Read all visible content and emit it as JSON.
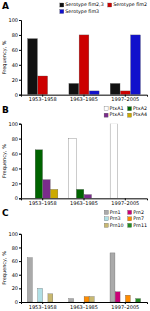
{
  "chart_data": [
    {
      "type": "bar",
      "title": "A",
      "categories": [
        "1953–1958",
        "1963–1985",
        "1997–2005"
      ],
      "series": [
        {
          "name": "Serotype fim2,3",
          "color": "#111111",
          "values": [
            75,
            15,
            15
          ]
        },
        {
          "name": "Serotype fim2",
          "color": "#cc0000",
          "values": [
            25,
            80,
            5
          ]
        },
        {
          "name": "Serotype fim3",
          "color": "#1111cc",
          "values": [
            0,
            5,
            80
          ]
        }
      ],
      "ylabel": "Frequency, %",
      "ylim": [
        0,
        100
      ],
      "yticks": [
        0,
        20,
        40,
        60,
        80,
        100
      ],
      "legend": "upper right"
    },
    {
      "type": "bar",
      "title": "B",
      "categories": [
        "1953–1958",
        "1963–1985",
        "1997–2005"
      ],
      "series": [
        {
          "name": "PtxA1",
          "color": "#ffffff",
          "values": [
            0,
            80,
            100
          ]
        },
        {
          "name": "PtxA2",
          "color": "#006400",
          "values": [
            65,
            12,
            0
          ]
        },
        {
          "name": "PtxA3",
          "color": "#7b2d8b",
          "values": [
            25,
            5,
            0
          ]
        },
        {
          "name": "PtxA4",
          "color": "#ccaa00",
          "values": [
            12,
            0,
            0
          ]
        }
      ],
      "ylabel": "Frequency, %",
      "ylim": [
        0,
        100
      ],
      "yticks": [
        0,
        20,
        40,
        60,
        80,
        100
      ],
      "legend": "upper right"
    },
    {
      "type": "bar",
      "title": "C",
      "categories": [
        "1953–1958",
        "1963–1985",
        "1997–2005"
      ],
      "series": [
        {
          "name": "Prn1",
          "color": "#aaaaaa",
          "values": [
            65,
            5,
            72
          ]
        },
        {
          "name": "Prn2",
          "color": "#cc0077",
          "values": [
            0,
            0,
            15
          ]
        },
        {
          "name": "Prn3",
          "color": "#b0e0e6",
          "values": [
            20,
            0,
            0
          ]
        },
        {
          "name": "Prn7",
          "color": "#ff8c00",
          "values": [
            0,
            8,
            10
          ]
        },
        {
          "name": "Prn10",
          "color": "#c8b870",
          "values": [
            12,
            8,
            0
          ]
        },
        {
          "name": "Prn11",
          "color": "#228b22",
          "values": [
            0,
            0,
            5
          ]
        }
      ],
      "ylabel": "Frequency, %",
      "ylim": [
        0,
        100
      ],
      "yticks": [
        0,
        20,
        40,
        60,
        80,
        100
      ],
      "legend": "upper right"
    }
  ]
}
